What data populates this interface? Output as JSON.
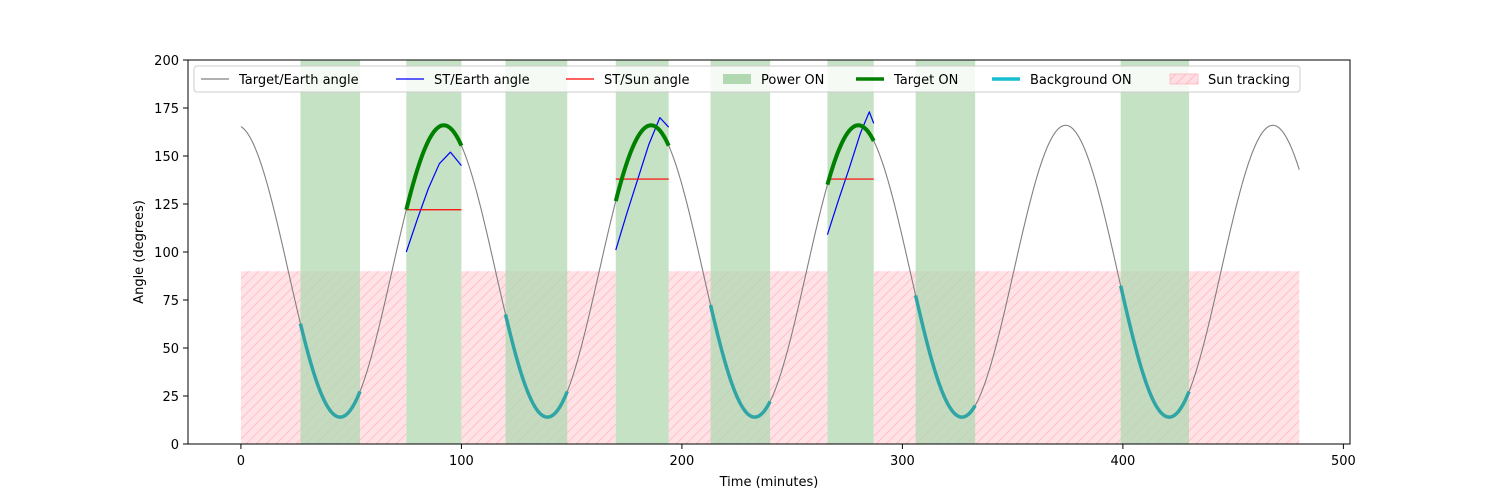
{
  "chart_data": {
    "type": "line",
    "xlabel": "Time (minutes)",
    "ylabel": "Angle (degrees)",
    "xlim": [
      -24,
      503
    ],
    "ylim": [
      0,
      200
    ],
    "xticks": [
      0,
      100,
      200,
      300,
      400,
      500
    ],
    "yticks": [
      0,
      25,
      50,
      75,
      100,
      125,
      150,
      175,
      200
    ],
    "grid": false,
    "legend_position": "top",
    "colors": {
      "target_earth": "#808080",
      "st_earth": "#0000ff",
      "st_sun": "#ff0000",
      "power_on": "#b2d8b2",
      "target_on": "#008000",
      "background_on": "#30a5a5",
      "background_legend": "#17becf",
      "sun_tracking_fill": "#ffdfe3",
      "sun_tracking_hatch": "#ffb3bd"
    },
    "legend": [
      {
        "label": "Target/Earth angle",
        "kind": "line",
        "series": "target_earth"
      },
      {
        "label": "ST/Earth angle",
        "kind": "line",
        "series": "st_earth"
      },
      {
        "label": "ST/Sun angle",
        "kind": "line",
        "series": "st_sun"
      },
      {
        "label": "Power ON",
        "kind": "patch",
        "series": "power_on"
      },
      {
        "label": "Target ON",
        "kind": "thick",
        "series": "target_on"
      },
      {
        "label": "Background ON",
        "kind": "thick",
        "series": "background_legend"
      },
      {
        "label": "Sun tracking",
        "kind": "hatch",
        "series": "sun_tracking"
      }
    ],
    "target_earth_angle": {
      "x_range": [
        0,
        480
      ],
      "min": 14,
      "max": 166,
      "period_minutes": 94,
      "first_minimum_at": 45
    },
    "power_on_intervals": [
      [
        27,
        54
      ],
      [
        75,
        100
      ],
      [
        120,
        148
      ],
      [
        170,
        194
      ],
      [
        213,
        240
      ],
      [
        266,
        287
      ],
      [
        306,
        333
      ],
      [
        399,
        430
      ]
    ],
    "target_on_intervals": [
      [
        75,
        100
      ],
      [
        170,
        194
      ],
      [
        266,
        287
      ]
    ],
    "background_on_intervals": [
      [
        27,
        54
      ],
      [
        120,
        148
      ],
      [
        213,
        240
      ],
      [
        306,
        333
      ],
      [
        399,
        430
      ]
    ],
    "sun_tracking": {
      "ymax": 90,
      "intervals": [
        [
          0,
          75
        ],
        [
          100,
          170
        ],
        [
          194,
          266
        ],
        [
          287,
          480
        ]
      ]
    },
    "st_earth_segments": [
      {
        "x": [
          75,
          80,
          85,
          90,
          95,
          100
        ],
        "y": [
          100,
          117,
          133,
          146,
          152,
          145
        ]
      },
      {
        "x": [
          170,
          175,
          180,
          185,
          190,
          194
        ],
        "y": [
          101,
          120,
          138,
          156,
          170,
          165
        ]
      },
      {
        "x": [
          266,
          271,
          276,
          281,
          285,
          287
        ],
        "y": [
          109,
          127,
          144,
          162,
          173,
          167
        ]
      }
    ],
    "st_sun_segments": [
      {
        "x": [
          75,
          100
        ],
        "y": [
          122,
          122
        ]
      },
      {
        "x": [
          170,
          194
        ],
        "y": [
          138,
          138
        ]
      },
      {
        "x": [
          266,
          287
        ],
        "y": [
          138,
          138
        ]
      }
    ]
  }
}
